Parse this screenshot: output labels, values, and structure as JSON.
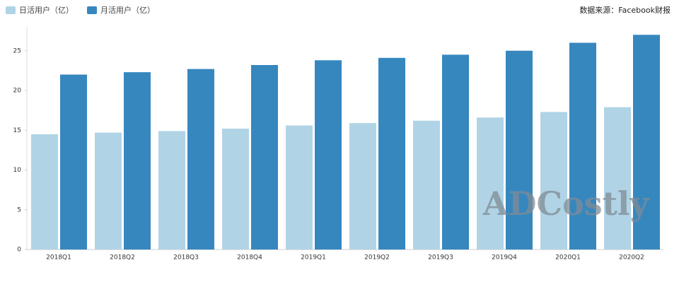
{
  "chart_data": {
    "type": "bar",
    "annotation": "数据来源：Facebook财报",
    "watermark": "ADCostly",
    "categories": [
      "2018Q1",
      "2018Q2",
      "2018Q3",
      "2018Q4",
      "2019Q1",
      "2019Q2",
      "2019Q3",
      "2019Q4",
      "2020Q1",
      "2020Q2"
    ],
    "series": [
      {
        "name": "日活用户（亿）",
        "color": "#b0d4e6",
        "values": [
          14.5,
          14.7,
          14.9,
          15.2,
          15.6,
          15.9,
          16.2,
          16.6,
          17.3,
          17.9
        ]
      },
      {
        "name": "月活用户（亿）",
        "color": "#3787bf",
        "values": [
          22.0,
          22.3,
          22.7,
          23.2,
          23.8,
          24.1,
          24.5,
          25.0,
          26.0,
          27.0
        ]
      }
    ],
    "ylim": [
      0,
      28
    ],
    "yticks": [
      0,
      5,
      10,
      15,
      20,
      25
    ]
  }
}
